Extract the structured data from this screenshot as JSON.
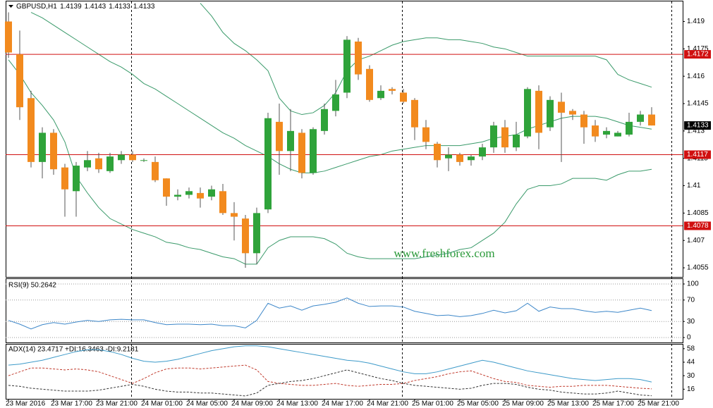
{
  "chart_data": [
    {
      "type": "candlestick",
      "title": "GBPUSD,H1",
      "title_values": [
        1.4139,
        1.4143,
        1.4133,
        1.4133
      ],
      "categories": [
        "23 Mar 2016",
        null,
        null,
        null,
        "23 Mar 17:00",
        null,
        null,
        null,
        "23 Mar 21:00",
        null,
        null,
        null,
        "24 Mar 01:00",
        null,
        null,
        null,
        "24 Mar 05:00",
        null,
        null,
        null,
        "24 Mar 09:00",
        null,
        null,
        null,
        "24 Mar 13:00",
        null,
        null,
        null,
        "24 Mar 17:00",
        null,
        null,
        null,
        "24 Mar 21:00",
        null,
        null,
        null,
        "25 Mar 01:00",
        null,
        null,
        null,
        "25 Mar 05:00",
        null,
        null,
        null,
        "25 Mar 09:00",
        null,
        null,
        null,
        "25 Mar 13:00",
        null,
        null,
        null,
        "25 Mar 17:00",
        null,
        null,
        null,
        "25 Mar 21:00",
        null
      ],
      "open": [
        1.419,
        1.4172,
        1.4148,
        1.4113,
        1.4129,
        1.411,
        1.4097,
        1.411,
        1.4115,
        1.4108,
        1.4114,
        1.4117,
        1.4114,
        1.4113,
        1.4104,
        1.4094,
        1.4095,
        1.4096,
        1.4094,
        1.4097,
        1.4085,
        1.4082,
        1.4063,
        1.4087,
        1.4135,
        1.4119,
        1.4129,
        1.4107,
        1.413,
        1.4141,
        1.4151,
        1.4179,
        1.4164,
        1.4148,
        1.4153,
        1.4151,
        1.4147,
        1.4132,
        1.4123,
        1.4115,
        1.4117,
        1.4114,
        1.4116,
        1.4121,
        1.4132,
        1.4121,
        1.4127,
        1.4152,
        1.4132,
        1.4146,
        1.4141,
        1.4139,
        1.4133,
        1.4128,
        1.4127,
        1.4128,
        1.4135,
        1.4139
      ],
      "high": [
        1.4195,
        1.4185,
        1.4152,
        1.4132,
        1.4131,
        1.4112,
        1.4113,
        1.4119,
        1.4118,
        1.4118,
        1.4119,
        1.4119,
        1.4115,
        1.4116,
        1.4104,
        1.4098,
        1.4099,
        1.4099,
        1.41,
        1.4101,
        1.4091,
        1.4084,
        1.4088,
        1.414,
        1.4145,
        1.4142,
        1.4131,
        1.4132,
        1.4145,
        1.4158,
        1.4182,
        1.4181,
        1.4166,
        1.4155,
        1.4154,
        1.4153,
        1.4148,
        1.4136,
        1.4124,
        1.4121,
        1.4118,
        1.4117,
        1.4123,
        1.4135,
        1.4136,
        1.4135,
        1.4154,
        1.4155,
        1.4149,
        1.4151,
        1.4142,
        1.4141,
        1.4136,
        1.4132,
        1.413,
        1.414,
        1.4141,
        1.4143
      ],
      "low": [
        1.417,
        1.4136,
        1.411,
        1.4104,
        1.4106,
        1.4083,
        1.4083,
        1.4108,
        1.4107,
        1.4107,
        1.4112,
        1.4113,
        1.4113,
        1.4102,
        1.4089,
        1.4092,
        1.4093,
        1.4088,
        1.4092,
        1.4084,
        1.407,
        1.4055,
        1.4057,
        1.4085,
        1.4106,
        1.4108,
        1.4104,
        1.4106,
        1.4128,
        1.4138,
        1.4148,
        1.4158,
        1.4146,
        1.4147,
        1.415,
        1.4145,
        1.4125,
        1.412,
        1.411,
        1.4108,
        1.4111,
        1.4111,
        1.4114,
        1.4118,
        1.4118,
        1.4119,
        1.4126,
        1.412,
        1.413,
        1.4113,
        1.4136,
        1.4123,
        1.4124,
        1.4126,
        1.4127,
        1.4127,
        1.4133,
        1.4133
      ],
      "close": [
        1.4173,
        1.4143,
        1.4113,
        1.4129,
        1.4109,
        1.4098,
        1.4111,
        1.4114,
        1.4109,
        1.4116,
        1.4117,
        1.4114,
        1.4114,
        1.4103,
        1.4094,
        1.4095,
        1.4097,
        1.4093,
        1.4098,
        1.4085,
        1.4083,
        1.4063,
        1.4085,
        1.4137,
        1.4119,
        1.413,
        1.4107,
        1.4131,
        1.4142,
        1.415,
        1.418,
        1.4161,
        1.4147,
        1.4152,
        1.4152,
        1.4146,
        1.4132,
        1.4124,
        1.4114,
        1.4117,
        1.4113,
        1.4116,
        1.4121,
        1.4133,
        1.4121,
        1.4128,
        1.4153,
        1.4129,
        1.4147,
        1.414,
        1.4139,
        1.4132,
        1.4127,
        1.413,
        1.4129,
        1.4135,
        1.4139,
        1.4133
      ],
      "up_color": "#2fa33a",
      "down_color": "#f28a1e",
      "wick_color": "#555555",
      "series": [
        {
          "color": "#3a9a6a",
          "values": [
            null,
            null,
            null,
            null,
            null,
            null,
            null,
            null,
            null,
            null,
            null,
            null,
            null,
            null,
            null,
            null,
            null,
            1.42,
            1.4193,
            1.4184,
            1.4178,
            1.4174,
            1.4169,
            1.4163,
            1.4148,
            1.4141,
            1.4139,
            1.414,
            1.4144,
            1.4151,
            1.4163,
            1.4169,
            1.4171,
            1.4174,
            1.4177,
            1.4179,
            1.418,
            1.4181,
            1.4181,
            1.418,
            1.418,
            1.4179,
            1.4178,
            1.4176,
            1.4175,
            1.4173,
            1.4171,
            1.4171,
            1.4171,
            1.4171,
            1.4171,
            1.4171,
            1.4171,
            1.4169,
            1.4161,
            1.4158,
            1.4156,
            1.4154
          ]
        },
        {
          "color": "#3a9a6a",
          "values": [
            null,
            null,
            1.4195,
            1.4192,
            1.4188,
            1.4184,
            1.418,
            1.4176,
            1.4172,
            1.4168,
            1.4165,
            1.4161,
            1.4156,
            1.4153,
            1.4149,
            1.4145,
            1.4141,
            1.4137,
            1.4133,
            1.4129,
            1.4126,
            1.4122,
            1.4119,
            1.4116,
            1.4112,
            1.4109,
            1.4107,
            1.4107,
            1.4108,
            1.411,
            1.4112,
            1.4114,
            1.4116,
            1.4117,
            1.4119,
            1.412,
            1.4121,
            1.4122,
            1.4122,
            1.4122,
            1.4122,
            1.4123,
            1.4124,
            1.4126,
            1.4127,
            1.4128,
            1.4131,
            1.4133,
            1.4135,
            1.4137,
            1.4138,
            1.4138,
            1.4138,
            1.4137,
            1.4135,
            1.4133,
            1.4132,
            1.4131
          ]
        },
        {
          "color": "#3a9a6a",
          "values": [
            1.4169,
            1.4161,
            1.4151,
            1.4144,
            1.4136,
            1.4124,
            1.4105,
            1.4096,
            1.4088,
            1.4082,
            1.4079,
            1.4076,
            1.4074,
            1.4072,
            1.4069,
            1.4068,
            1.4066,
            1.4065,
            1.4063,
            1.4061,
            1.406,
            1.4057,
            1.4057,
            1.4066,
            1.407,
            1.4072,
            1.4072,
            1.4072,
            1.4071,
            1.4068,
            1.4063,
            1.4061,
            1.406,
            1.406,
            1.406,
            1.406,
            1.406,
            1.4061,
            1.4062,
            1.4063,
            1.4065,
            1.4066,
            1.407,
            1.4074,
            1.408,
            1.409,
            1.4098,
            1.41,
            1.41,
            1.4101,
            1.4104,
            1.4104,
            1.4104,
            1.4103,
            1.4106,
            1.4108,
            1.4108,
            1.4109
          ]
        }
      ],
      "ylim": [
        1.405,
        1.4201
      ],
      "yticks": [
        1.419,
        1.4175,
        1.416,
        1.4145,
        1.413,
        1.4115,
        1.41,
        1.4085,
        1.407,
        1.4055
      ],
      "levels": [
        1.4172,
        1.4117,
        1.4078
      ],
      "level_color": "#d01010",
      "last_price": 1.4133,
      "watermark": "www.freshforex.com"
    },
    {
      "type": "line",
      "title": "RSI(9) 50.2642",
      "series": [
        {
          "color": "#3d87c9",
          "values": [
            32,
            25,
            16,
            24,
            28,
            25,
            29,
            32,
            30,
            33,
            34,
            33,
            33,
            28,
            24,
            25,
            25,
            24,
            25,
            22,
            22,
            18,
            32,
            64,
            55,
            59,
            51,
            59,
            62,
            66,
            74,
            64,
            58,
            59,
            59,
            57,
            49,
            45,
            41,
            42,
            39,
            41,
            45,
            51,
            46,
            50,
            64,
            49,
            57,
            54,
            54,
            50,
            47,
            49,
            47,
            51,
            55,
            50.2642
          ]
        }
      ],
      "ylim": [
        0,
        100
      ],
      "yticks": [
        100,
        70,
        30,
        0
      ],
      "grid": true
    },
    {
      "type": "line",
      "title": "ADX(14) 23.4717 +DI:16.3463 -DI:9.2181",
      "series": [
        {
          "color": "#3d9ac9",
          "line_style": "solid",
          "values": [
            41,
            42,
            44,
            46,
            49,
            52,
            55,
            57,
            57,
            55,
            52,
            48,
            45,
            44,
            45,
            47,
            50,
            53,
            56,
            58,
            60,
            61,
            61,
            60,
            58,
            56,
            54,
            52,
            50,
            48,
            46,
            45,
            43,
            40,
            37,
            34,
            32,
            32,
            34,
            37,
            40,
            43,
            46,
            44,
            41,
            38,
            35,
            33,
            31,
            29,
            27,
            26,
            25,
            26,
            27,
            27,
            26,
            23.4717
          ]
        },
        {
          "color": "#c0392b",
          "line_style": "dashed",
          "values": [
            30,
            34,
            38,
            38,
            37,
            36,
            37,
            36,
            34,
            30,
            26,
            22,
            27,
            33,
            37,
            38,
            38,
            37,
            38,
            39,
            40,
            41,
            36,
            24,
            22,
            21,
            20,
            20,
            21,
            22,
            20,
            19,
            20,
            21,
            21,
            22,
            25,
            27,
            29,
            32,
            34,
            35,
            31,
            27,
            24,
            23,
            20,
            19,
            18,
            19,
            19,
            20,
            20,
            20,
            19,
            18,
            17,
            16.3463
          ]
        },
        {
          "color": "#333333",
          "line_style": "dashed",
          "values": [
            20,
            19,
            17,
            16,
            15,
            14,
            14,
            14,
            15,
            17,
            19,
            21,
            19,
            16,
            14,
            13,
            13,
            12,
            12,
            11,
            10,
            9,
            12,
            20,
            22,
            24,
            25,
            27,
            30,
            33,
            36,
            33,
            30,
            27,
            25,
            22,
            20,
            19,
            18,
            17,
            16,
            17,
            20,
            22,
            22,
            21,
            18,
            16,
            15,
            13,
            12,
            11,
            11,
            12,
            14,
            12,
            10,
            9.2181
          ]
        }
      ],
      "ylim": [
        6,
        63
      ],
      "yticks": [
        58,
        44,
        30,
        16
      ],
      "grid": false
    }
  ]
}
